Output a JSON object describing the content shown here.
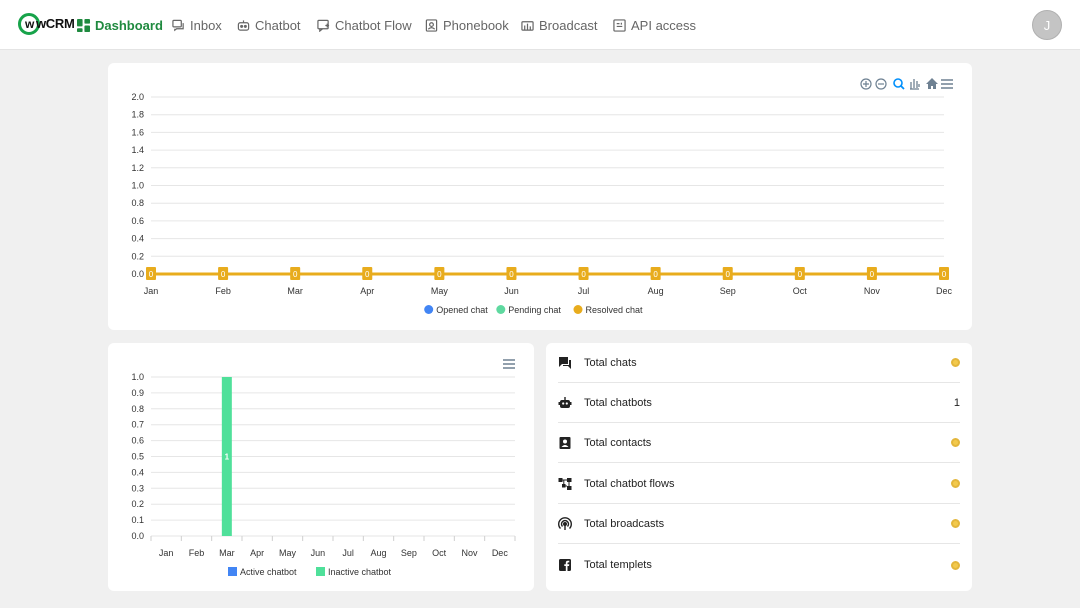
{
  "brand": {
    "logo_text": "wCRM",
    "accent": "#1f8a3f"
  },
  "nav": {
    "items": [
      {
        "label": "Dashboard",
        "icon": "dashboard-icon"
      },
      {
        "label": "Inbox",
        "icon": "inbox-icon"
      },
      {
        "label": "Chatbot",
        "icon": "chatbot-icon"
      },
      {
        "label": "Chatbot Flow",
        "icon": "chatbot-flow-icon"
      },
      {
        "label": "Phonebook",
        "icon": "phonebook-icon"
      },
      {
        "label": "Broadcast",
        "icon": "broadcast-icon"
      },
      {
        "label": "API access",
        "icon": "api-access-icon"
      }
    ],
    "avatar_initial": "J"
  },
  "chart_toolbar": [
    "zoom-in-icon",
    "zoom-out-icon",
    "selection-zoom-icon",
    "pan-icon",
    "reset-zoom-home-icon",
    "chart-menu-icon"
  ],
  "chart_data": [
    {
      "type": "line",
      "categories": [
        "Jan",
        "Feb",
        "Mar",
        "Apr",
        "May",
        "Jun",
        "Jul",
        "Aug",
        "Sep",
        "Oct",
        "Nov",
        "Dec"
      ],
      "yticks": [
        "0.0",
        "0.2",
        "0.4",
        "0.6",
        "0.8",
        "1.0",
        "1.2",
        "1.4",
        "1.6",
        "1.8",
        "2.0"
      ],
      "ylim": [
        0,
        2
      ],
      "series": [
        {
          "name": "Opened chat",
          "color": "#4285f4",
          "values": [
            0,
            0,
            0,
            0,
            0,
            0,
            0,
            0,
            0,
            0,
            0,
            0
          ]
        },
        {
          "name": "Pending chat",
          "color": "#5fd9a0",
          "values": [
            0,
            0,
            0,
            0,
            0,
            0,
            0,
            0,
            0,
            0,
            0,
            0
          ]
        },
        {
          "name": "Resolved chat",
          "color": "#e8ac1d",
          "values": [
            0,
            0,
            0,
            0,
            0,
            0,
            0,
            0,
            0,
            0,
            0,
            0
          ]
        }
      ],
      "data_labels": [
        "0",
        "0",
        "0",
        "0",
        "0",
        "0",
        "0",
        "0",
        "0",
        "0",
        "0",
        "0"
      ],
      "grid": true,
      "legend": "bottom-center"
    },
    {
      "type": "bar",
      "categories": [
        "Jan",
        "Feb",
        "Mar",
        "Apr",
        "May",
        "Jun",
        "Jul",
        "Aug",
        "Sep",
        "Oct",
        "Nov",
        "Dec"
      ],
      "yticks": [
        "0.0",
        "0.1",
        "0.2",
        "0.3",
        "0.4",
        "0.5",
        "0.6",
        "0.7",
        "0.8",
        "0.9",
        "1.0"
      ],
      "ylim": [
        0,
        1
      ],
      "series": [
        {
          "name": "Active chatbot",
          "color": "#4285f4",
          "values": [
            0,
            0,
            0,
            0,
            0,
            0,
            0,
            0,
            0,
            0,
            0,
            0
          ]
        },
        {
          "name": "Inactive chatbot",
          "color": "#4fe09a",
          "values": [
            0,
            0,
            1,
            0,
            0,
            0,
            0,
            0,
            0,
            0,
            0,
            0
          ]
        }
      ],
      "bar_label": "1",
      "grid": true,
      "legend": "bottom-center"
    }
  ],
  "stats": [
    {
      "label": "Total chats",
      "icon": "chat-icon",
      "value": "",
      "loading": true
    },
    {
      "label": "Total chatbots",
      "icon": "robot-icon",
      "value": "1",
      "loading": false
    },
    {
      "label": "Total contacts",
      "icon": "contact-icon",
      "value": "",
      "loading": true
    },
    {
      "label": "Total chatbot flows",
      "icon": "flow-icon",
      "value": "",
      "loading": true
    },
    {
      "label": "Total broadcasts",
      "icon": "broadcast-icon",
      "value": "",
      "loading": true
    },
    {
      "label": "Total templets",
      "icon": "facebook-icon",
      "value": "",
      "loading": true
    }
  ]
}
